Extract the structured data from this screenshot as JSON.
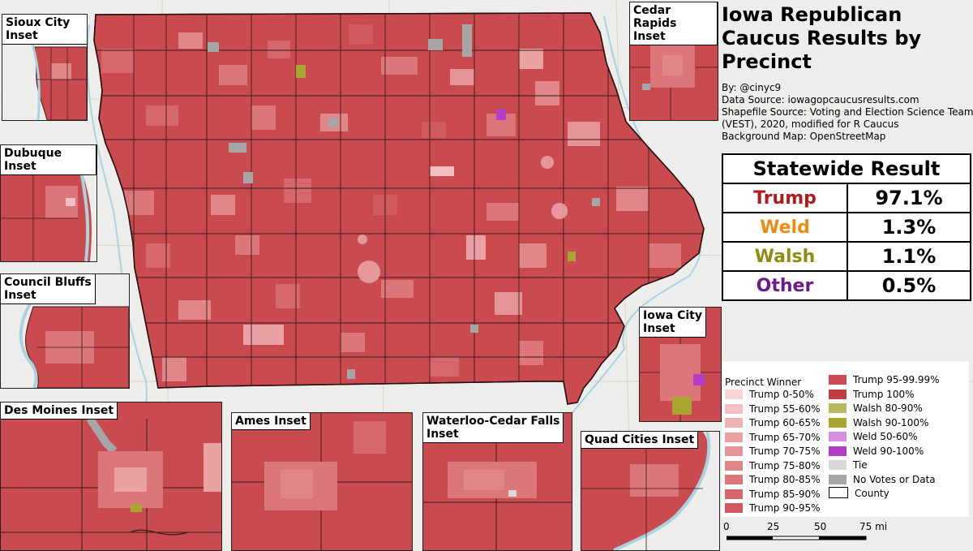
{
  "title": {
    "line1": "Iowa Republican",
    "line2": "Caucus Results by",
    "line3": "Precinct"
  },
  "credits": {
    "by": "By: @cinyc9",
    "data_source": "Data Source: iowagopcaucusresults.com",
    "shapefile_line1": "Shapefile Source: Voting and Election Science Team",
    "shapefile_line2": "(VEST), 2020, modified for R Caucus",
    "background": "Background Map: OpenStreetMap"
  },
  "statewide": {
    "header": "Statewide Result",
    "rows": [
      {
        "name": "Trump",
        "pct": "97.1%",
        "color": "#b01c1c"
      },
      {
        "name": "Weld",
        "pct": "1.3%",
        "color": "#f08a10"
      },
      {
        "name": "Walsh",
        "pct": "1.1%",
        "color": "#8f8c12"
      },
      {
        "name": "Other",
        "pct": "0.5%",
        "color": "#6a1a8a"
      }
    ]
  },
  "legend": {
    "title": "Precinct Winner",
    "col1": [
      {
        "label": "Trump 0-50%",
        "color": "#f7d4d5"
      },
      {
        "label": "Trump 55-60%",
        "color": "#f2c0c2"
      },
      {
        "label": "Trump 60-65%",
        "color": "#eeb2b4"
      },
      {
        "label": "Trump 65-70%",
        "color": "#e9a1a4"
      },
      {
        "label": "Trump 70-75%",
        "color": "#e59396"
      },
      {
        "label": "Trump 75-80%",
        "color": "#e08588"
      },
      {
        "label": "Trump 80-85%",
        "color": "#db777b"
      },
      {
        "label": "Trump 85-90%",
        "color": "#d6686d"
      },
      {
        "label": "Trump 90-95%",
        "color": "#d05a60"
      }
    ],
    "col2": [
      {
        "label": "Trump 95-99.99%",
        "color": "#cb4d53"
      },
      {
        "label": "Trump 100%",
        "color": "#c43c44"
      },
      {
        "label": "Walsh 80-90%",
        "color": "#b8b860"
      },
      {
        "label": "Walsh 90-100%",
        "color": "#a8a630"
      },
      {
        "label": "Weld 50-60%",
        "color": "#d88ee0"
      },
      {
        "label": "Weld 90-100%",
        "color": "#b43ec6"
      },
      {
        "label": "Tie",
        "color": "#d8d8d8"
      },
      {
        "label": "No Votes or Data",
        "color": "#a6a6a6"
      },
      {
        "label": "County",
        "color": "#ffffff"
      }
    ]
  },
  "scale": {
    "ticks": [
      "0",
      "25",
      "50",
      "75 mi"
    ]
  },
  "insets": [
    {
      "id": "sioux-city",
      "label_line1": "Sioux City",
      "label_line2": "Inset"
    },
    {
      "id": "dubuque",
      "label_line1": "Dubuque Inset",
      "label_line2": ""
    },
    {
      "id": "council-bluffs",
      "label_line1": "Council Bluffs",
      "label_line2": "Inset"
    },
    {
      "id": "des-moines",
      "label_line1": "Des Moines Inset",
      "label_line2": ""
    },
    {
      "id": "ames",
      "label_line1": "Ames Inset",
      "label_line2": ""
    },
    {
      "id": "waterloo",
      "label_line1": "Waterloo-Cedar Falls",
      "label_line2": "Inset"
    },
    {
      "id": "quad-cities",
      "label_line1": "Quad Cities Inset",
      "label_line2": ""
    },
    {
      "id": "cedar-rapids",
      "label_line1": "Cedar Rapids",
      "label_line2": "Inset"
    },
    {
      "id": "iowa-city",
      "label_line1": "Iowa City",
      "label_line2": "Inset"
    }
  ],
  "colors": {
    "base": "#c94a4f",
    "county_border": "#3a1a1a",
    "water": "#aad3df",
    "background": "#ededeb"
  }
}
